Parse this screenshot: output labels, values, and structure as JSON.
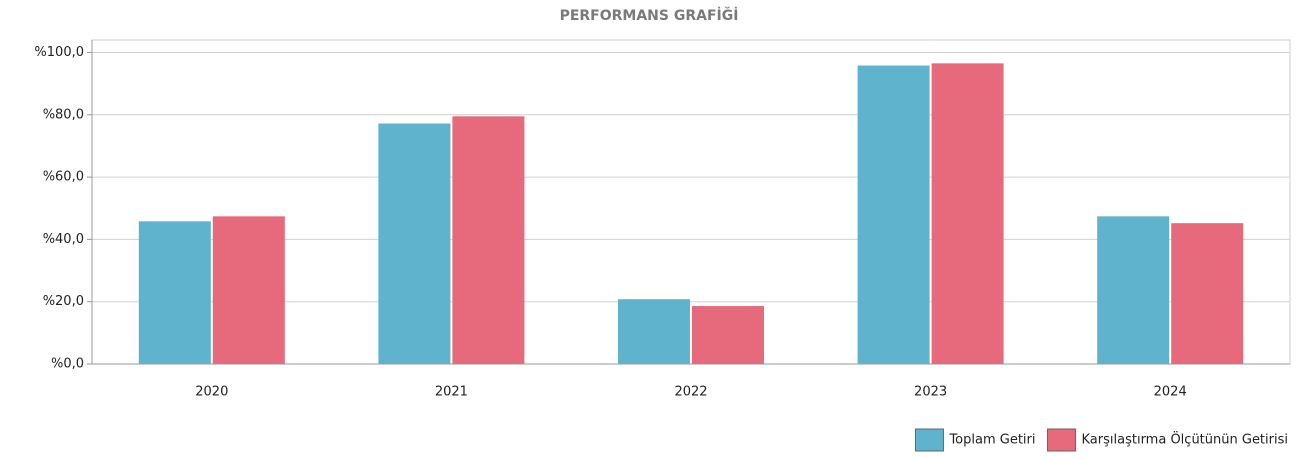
{
  "chart_data": {
    "type": "bar",
    "title": "PERFORMANS GRAFİĞİ",
    "categories": [
      "2020",
      "2021",
      "2022",
      "2023",
      "2024"
    ],
    "series": [
      {
        "name": "Toplam Getiri",
        "color": "#5fb3cc",
        "values": [
          45.8,
          77.2,
          20.8,
          95.8,
          47.4
        ]
      },
      {
        "name": "Karşılaştırma Ölçütünün Getirisi",
        "color": "#e66a7b",
        "values": [
          47.4,
          79.5,
          18.6,
          96.5,
          45.2
        ]
      }
    ],
    "ylim": [
      0,
      104
    ],
    "yticks": [
      {
        "value": 0,
        "label": "%0,0"
      },
      {
        "value": 20,
        "label": "%20,0"
      },
      {
        "value": 40,
        "label": "%40,0"
      },
      {
        "value": 60,
        "label": "%60,0"
      },
      {
        "value": 80,
        "label": "%80,0"
      },
      {
        "value": 100,
        "label": "%100,0"
      }
    ],
    "grid": true,
    "legend": "bottom-right"
  }
}
